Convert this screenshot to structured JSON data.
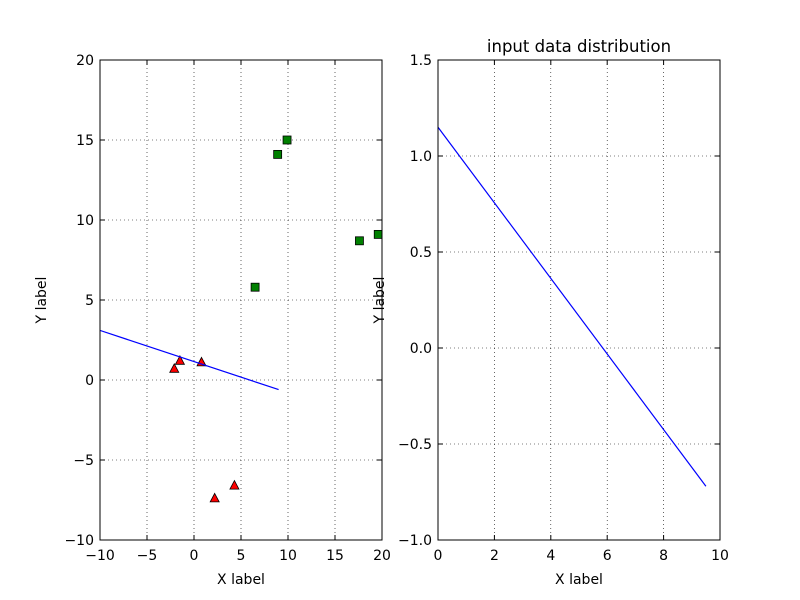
{
  "chart_data": [
    {
      "type": "scatter",
      "title": "",
      "xlabel": "X label",
      "ylabel": "Y label",
      "xlim": [
        -10,
        20
      ],
      "ylim": [
        -10,
        20
      ],
      "xticks": [
        -10,
        -5,
        0,
        5,
        10,
        15,
        20
      ],
      "yticks": [
        -10,
        -5,
        0,
        5,
        10,
        15,
        20
      ],
      "xtick_labels": [
        "−10",
        "−5",
        "0",
        "5",
        "10",
        "15",
        "20"
      ],
      "ytick_labels": [
        "−10",
        "−5",
        "0",
        "5",
        "10",
        "15",
        "20"
      ],
      "grid": true,
      "series": [
        {
          "marker": "square",
          "color": "#008000",
          "points": [
            [
              6.5,
              5.8
            ],
            [
              8.9,
              14.1
            ],
            [
              9.9,
              15.0
            ],
            [
              17.6,
              8.7
            ],
            [
              19.6,
              9.1
            ]
          ]
        },
        {
          "marker": "triangle",
          "color": "#ff0000",
          "points": [
            [
              -2.1,
              0.7
            ],
            [
              -1.5,
              1.2
            ],
            [
              0.8,
              1.1
            ],
            [
              2.2,
              -7.4
            ],
            [
              4.3,
              -6.6
            ]
          ]
        },
        {
          "marker": "line",
          "color": "#0000ff",
          "points": [
            [
              -10,
              3.1
            ],
            [
              9.0,
              -0.6
            ]
          ]
        }
      ]
    },
    {
      "type": "line",
      "title": "input data distribution",
      "xlabel": "X label",
      "ylabel": "Y label",
      "xlim": [
        0,
        10
      ],
      "ylim": [
        -1.0,
        1.5
      ],
      "xticks": [
        0,
        2,
        4,
        6,
        8,
        10
      ],
      "yticks": [
        -1.0,
        -0.5,
        0.0,
        0.5,
        1.0,
        1.5
      ],
      "xtick_labels": [
        "0",
        "2",
        "4",
        "6",
        "8",
        "10"
      ],
      "ytick_labels": [
        "−1.0",
        "−0.5",
        "0.0",
        "0.5",
        "1.0",
        "1.5"
      ],
      "grid": true,
      "series": [
        {
          "marker": "line",
          "color": "#0000ff",
          "points": [
            [
              0,
              1.15
            ],
            [
              9.5,
              -0.72
            ]
          ]
        }
      ]
    }
  ]
}
